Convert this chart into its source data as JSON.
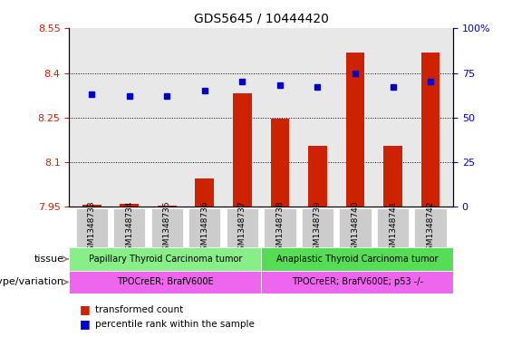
{
  "title": "GDS5645 / 10444420",
  "samples": [
    "GSM1348733",
    "GSM1348734",
    "GSM1348735",
    "GSM1348736",
    "GSM1348737",
    "GSM1348738",
    "GSM1348739",
    "GSM1348740",
    "GSM1348741",
    "GSM1348742"
  ],
  "bar_values": [
    7.957,
    7.959,
    7.953,
    8.045,
    8.33,
    8.245,
    8.155,
    8.47,
    8.155,
    8.47
  ],
  "dot_values": [
    63,
    62,
    62,
    65,
    70,
    68,
    67,
    75,
    67,
    70
  ],
  "bar_color": "#cc2200",
  "dot_color": "#0000cc",
  "ylim_left": [
    7.95,
    8.55
  ],
  "ylim_right": [
    0,
    100
  ],
  "yticks_left": [
    7.95,
    8.1,
    8.25,
    8.4,
    8.55
  ],
  "yticks_right": [
    0,
    25,
    50,
    75,
    100
  ],
  "ytick_labels_left": [
    "7.95",
    "8.1",
    "8.25",
    "8.4",
    "8.55"
  ],
  "ytick_labels_right": [
    "0",
    "25",
    "50",
    "75",
    "100%"
  ],
  "grid_values": [
    8.1,
    8.25,
    8.4
  ],
  "tissue_label1": "Papillary Thyroid Carcinoma tumor",
  "tissue_label2": "Anaplastic Thyroid Carcinoma tumor",
  "tissue_color1": "#88ee88",
  "tissue_color2": "#55dd55",
  "genotype_label1": "TPOCreER; BrafV600E",
  "genotype_label2": "TPOCreER; BrafV600E; p53 -/-",
  "genotype_color": "#ee66ee",
  "legend_bar_label": "transformed count",
  "legend_dot_label": "percentile rank within the sample",
  "tissue_row_label": "tissue",
  "genotype_row_label": "genotype/variation",
  "plot_bg_color": "#e8e8e8",
  "tick_bg_color": "#cccccc"
}
